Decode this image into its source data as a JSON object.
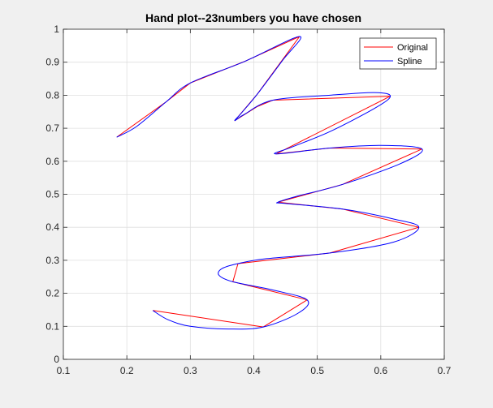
{
  "chart_data": {
    "type": "line",
    "title": "Hand plot--23numbers you have chosen",
    "xlabel": "",
    "ylabel": "",
    "xlim": [
      0.1,
      0.7
    ],
    "ylim": [
      0,
      1
    ],
    "x_ticks": [
      "0.1",
      "0.2",
      "0.3",
      "0.4",
      "0.5",
      "0.6",
      "0.7"
    ],
    "y_ticks": [
      "0",
      "0.1",
      "0.2",
      "0.3",
      "0.4",
      "0.5",
      "0.6",
      "0.7",
      "0.8",
      "0.9",
      "1"
    ],
    "grid": true,
    "legend_position": "top-right",
    "series": [
      {
        "name": "Original",
        "color": "#ff0000",
        "points": [
          [
            0.184,
            0.673
          ],
          [
            0.262,
            0.78
          ],
          [
            0.3,
            0.837
          ],
          [
            0.385,
            0.902
          ],
          [
            0.472,
            0.978
          ],
          [
            0.405,
            0.802
          ],
          [
            0.37,
            0.723
          ],
          [
            0.405,
            0.765
          ],
          [
            0.43,
            0.785
          ],
          [
            0.615,
            0.797
          ],
          [
            0.435,
            0.622
          ],
          [
            0.52,
            0.64
          ],
          [
            0.665,
            0.637
          ],
          [
            0.54,
            0.53
          ],
          [
            0.438,
            0.476
          ],
          [
            0.54,
            0.455
          ],
          [
            0.66,
            0.4
          ],
          [
            0.52,
            0.322
          ],
          [
            0.375,
            0.29
          ],
          [
            0.367,
            0.235
          ],
          [
            0.484,
            0.18
          ],
          [
            0.415,
            0.098
          ],
          [
            0.241,
            0.148
          ]
        ]
      },
      {
        "name": "Spline",
        "color": "#0000ff",
        "points": [
          [
            0.184,
            0.673
          ],
          [
            0.215,
            0.705
          ],
          [
            0.262,
            0.78
          ],
          [
            0.3,
            0.837
          ],
          [
            0.385,
            0.902
          ],
          [
            0.472,
            0.978
          ],
          [
            0.445,
            0.905
          ],
          [
            0.405,
            0.802
          ],
          [
            0.38,
            0.745
          ],
          [
            0.37,
            0.723
          ],
          [
            0.385,
            0.742
          ],
          [
            0.43,
            0.785
          ],
          [
            0.52,
            0.8
          ],
          [
            0.59,
            0.808
          ],
          [
            0.615,
            0.797
          ],
          [
            0.59,
            0.76
          ],
          [
            0.52,
            0.69
          ],
          [
            0.46,
            0.643
          ],
          [
            0.435,
            0.622
          ],
          [
            0.52,
            0.64
          ],
          [
            0.6,
            0.648
          ],
          [
            0.665,
            0.637
          ],
          [
            0.63,
            0.592
          ],
          [
            0.54,
            0.53
          ],
          [
            0.47,
            0.495
          ],
          [
            0.438,
            0.476
          ],
          [
            0.45,
            0.472
          ],
          [
            0.54,
            0.455
          ],
          [
            0.62,
            0.425
          ],
          [
            0.66,
            0.4
          ],
          [
            0.62,
            0.355
          ],
          [
            0.52,
            0.322
          ],
          [
            0.42,
            0.305
          ],
          [
            0.375,
            0.29
          ],
          [
            0.35,
            0.275
          ],
          [
            0.345,
            0.255
          ],
          [
            0.367,
            0.235
          ],
          [
            0.43,
            0.21
          ],
          [
            0.484,
            0.18
          ],
          [
            0.47,
            0.14
          ],
          [
            0.415,
            0.098
          ],
          [
            0.36,
            0.092
          ],
          [
            0.3,
            0.1
          ],
          [
            0.265,
            0.12
          ],
          [
            0.241,
            0.148
          ]
        ]
      }
    ]
  }
}
